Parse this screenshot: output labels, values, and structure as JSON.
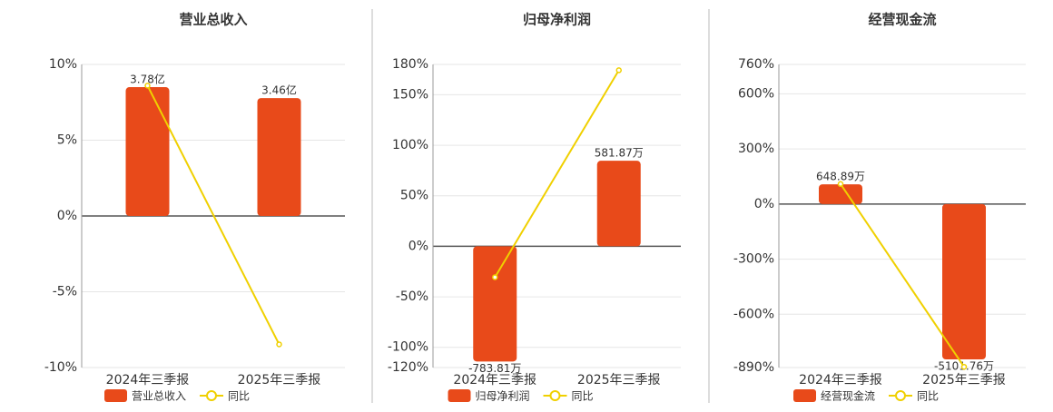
{
  "chart_data": [
    {
      "type": "combo",
      "title": "营业总收入",
      "categories": [
        "2024年三季报",
        "2025年三季报"
      ],
      "ylim": [
        -10,
        10
      ],
      "yticks": [
        {
          "value": 10,
          "label": "10%"
        },
        {
          "value": 5,
          "label": "5%"
        },
        {
          "value": 0,
          "label": "0%"
        },
        {
          "value": -5,
          "label": "-5%"
        },
        {
          "value": -10,
          "label": "-10%"
        }
      ],
      "series": [
        {
          "name": "营业总收入",
          "type": "bar",
          "color": "#e84a1a",
          "values": [
            3.78,
            3.46
          ],
          "value_labels": [
            "3.78亿",
            "3.46亿"
          ]
        },
        {
          "name": "同比",
          "type": "line",
          "color": "#f0d000",
          "values": [
            8.6,
            -8.47
          ]
        }
      ]
    },
    {
      "type": "combo",
      "title": "归母净利润",
      "categories": [
        "2024年三季报",
        "2025年三季报"
      ],
      "ylim": [
        -120,
        180
      ],
      "yticks": [
        {
          "value": 180,
          "label": "180%"
        },
        {
          "value": 150,
          "label": "150%"
        },
        {
          "value": 100,
          "label": "100%"
        },
        {
          "value": 50,
          "label": "50%"
        },
        {
          "value": 0,
          "label": "0%"
        },
        {
          "value": -50,
          "label": "-50%"
        },
        {
          "value": -100,
          "label": "-100%"
        },
        {
          "value": -120,
          "label": "-120%"
        }
      ],
      "series": [
        {
          "name": "归母净利润",
          "type": "bar",
          "color": "#e84a1a",
          "values": [
            -783.81,
            581.87
          ],
          "value_labels": [
            "-783.81万",
            "581.87万"
          ]
        },
        {
          "name": "同比",
          "type": "line",
          "color": "#f0d000",
          "values": [
            -30.6,
            174.24
          ]
        }
      ]
    },
    {
      "type": "combo",
      "title": "经营现金流",
      "categories": [
        "2024年三季报",
        "2025年三季报"
      ],
      "ylim": [
        -890,
        760
      ],
      "yticks": [
        {
          "value": 760,
          "label": "760%"
        },
        {
          "value": 600,
          "label": "600%"
        },
        {
          "value": 300,
          "label": "300%"
        },
        {
          "value": 0,
          "label": "0%"
        },
        {
          "value": -300,
          "label": "-300%"
        },
        {
          "value": -600,
          "label": "-600%"
        },
        {
          "value": -890,
          "label": "-890%"
        }
      ],
      "series": [
        {
          "name": "经营现金流",
          "type": "bar",
          "color": "#e84a1a",
          "values": [
            648.89,
            -5101.76
          ],
          "value_labels": [
            "648.89万",
            "-5101.76万"
          ]
        },
        {
          "name": "同比",
          "type": "line",
          "color": "#f0d000",
          "values": [
            109,
            -886.22
          ]
        }
      ]
    }
  ]
}
